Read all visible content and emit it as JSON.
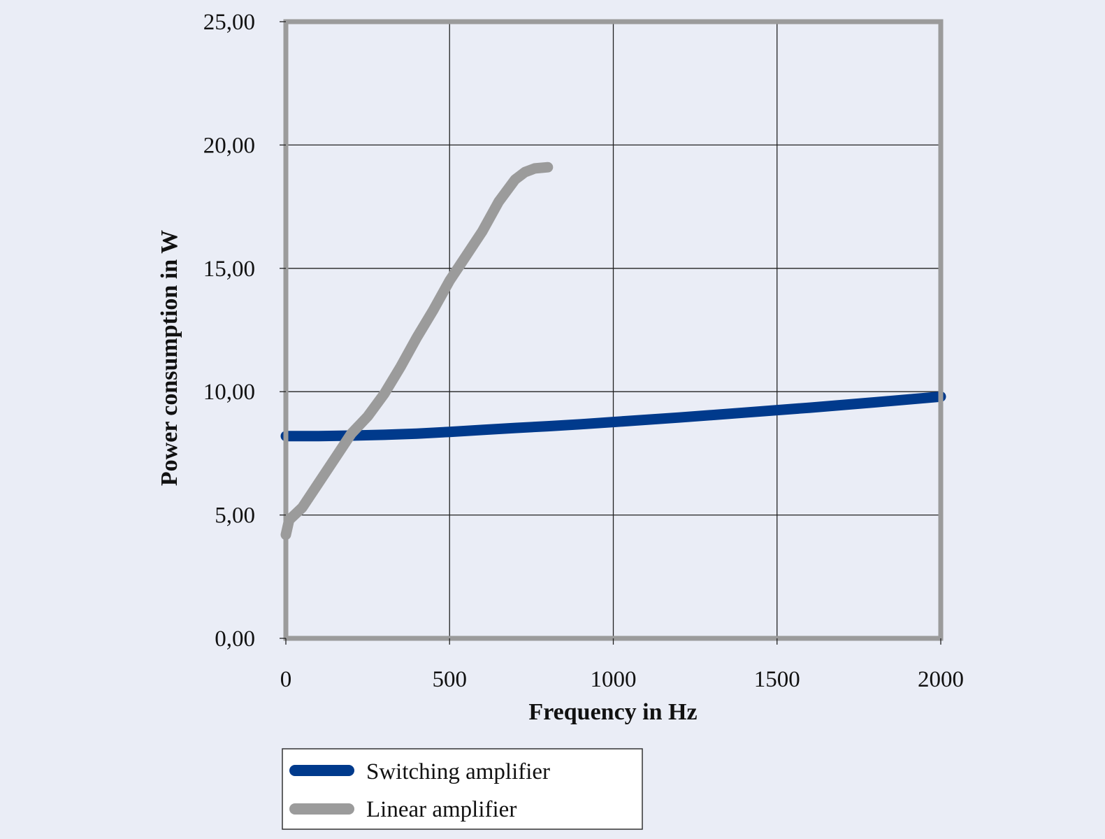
{
  "chart_data": {
    "type": "line",
    "title": "",
    "xlabel": "Frequency in Hz",
    "ylabel": "Power consumption in W",
    "xlim": [
      0,
      2000
    ],
    "ylim": [
      0,
      25
    ],
    "x_ticks": [
      "0",
      "500",
      "1000",
      "1500",
      "2000"
    ],
    "y_ticks": [
      "0,00",
      "5,00",
      "10,00",
      "15,00",
      "20,00",
      "25,00"
    ],
    "grid": true,
    "legend_position": "bottom-left",
    "series": [
      {
        "name": "Switching amplifier",
        "color": "#003a8c",
        "x": [
          0,
          100,
          200,
          300,
          400,
          500,
          600,
          700,
          800,
          900,
          1000,
          1200,
          1400,
          1600,
          1800,
          2000
        ],
        "y": [
          8.2,
          8.2,
          8.22,
          8.25,
          8.3,
          8.37,
          8.45,
          8.53,
          8.6,
          8.68,
          8.77,
          8.95,
          9.15,
          9.35,
          9.57,
          9.8
        ]
      },
      {
        "name": "Linear amplifier",
        "color": "#9b9b9b",
        "x": [
          0,
          10,
          50,
          100,
          150,
          200,
          250,
          300,
          350,
          400,
          450,
          500,
          550,
          600,
          650,
          700,
          730,
          760,
          800
        ],
        "y": [
          4.2,
          4.8,
          5.3,
          6.3,
          7.3,
          8.3,
          9.0,
          9.9,
          11.0,
          12.2,
          13.3,
          14.5,
          15.5,
          16.5,
          17.7,
          18.6,
          18.9,
          19.05,
          19.1
        ]
      }
    ]
  }
}
